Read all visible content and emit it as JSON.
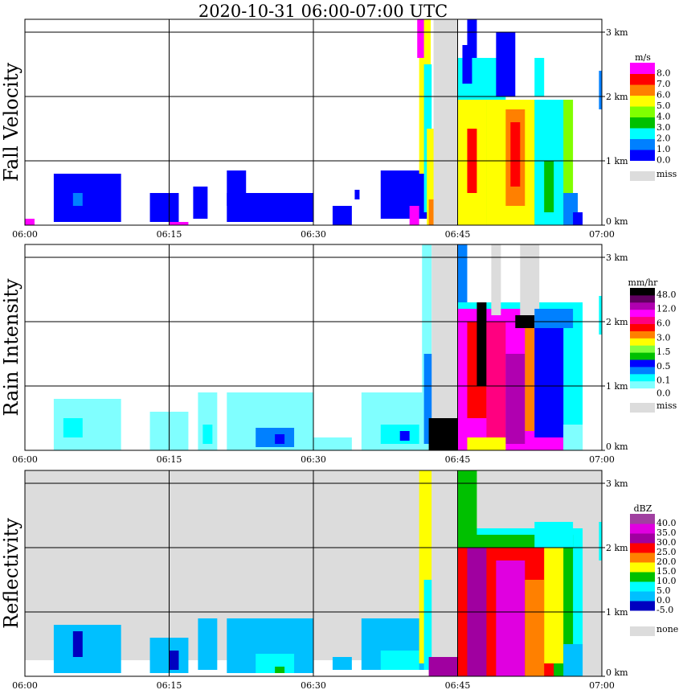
{
  "chart_data": {
    "type": "heatmap",
    "title": "2020-10-31   06:00-07:00 UTC",
    "x_range_minutes": [
      0,
      60
    ],
    "x_ticks": [
      "06:00",
      "06:15",
      "06:30",
      "06:45",
      "07:00"
    ],
    "y_range_km": [
      0,
      3.2
    ],
    "y_ticks": [
      "0 km",
      "1 km",
      "2 km",
      "3 km"
    ],
    "grid": true,
    "panels": [
      {
        "ylabel": "Fall Velocity",
        "background": "#ffffff",
        "legend": {
          "unit": "m/s",
          "colors": [
            "#0000ff",
            "#0080ff",
            "#00ffff",
            "#00c000",
            "#80ff00",
            "#ffff00",
            "#ff8000",
            "#ff0000",
            "#ff00ff"
          ],
          "labels": [
            {
              "level": 0,
              "text": "0.0"
            },
            {
              "level": 1,
              "text": "1.0"
            },
            {
              "level": 2,
              "text": "2.0"
            },
            {
              "level": 3,
              "text": "3.0"
            },
            {
              "level": 4,
              "text": "4.0"
            },
            {
              "level": 5,
              "text": "5.0"
            },
            {
              "level": 6,
              "text": "6.0"
            },
            {
              "level": 7,
              "text": "7.0"
            },
            {
              "level": 8,
              "text": "8.0"
            }
          ],
          "missing_label": "miss",
          "missing_color": "#dcdcdc"
        },
        "cells": [
          [
            0,
            1,
            0,
            0.1,
            8
          ],
          [
            3,
            10,
            0.05,
            0.8,
            0
          ],
          [
            5,
            6,
            0.3,
            0.5,
            1
          ],
          [
            13,
            16,
            0.05,
            0.5,
            0
          ],
          [
            17.5,
            19,
            0.1,
            0.6,
            0
          ],
          [
            15,
            17,
            0,
            0.05,
            8
          ],
          [
            21,
            30,
            0.05,
            0.5,
            0
          ],
          [
            21,
            23,
            0.3,
            0.85,
            0
          ],
          [
            26,
            29,
            0.1,
            0.4,
            0
          ],
          [
            32,
            34,
            0,
            0.3,
            0
          ],
          [
            34.3,
            34.8,
            0.4,
            0.55,
            0
          ],
          [
            37,
            42,
            0.1,
            0.85,
            0
          ],
          [
            40,
            41,
            0,
            0.3,
            8
          ],
          [
            41,
            42.2,
            0.8,
            3.2,
            5
          ],
          [
            40.8,
            41.5,
            2.6,
            3.2,
            8
          ],
          [
            41.5,
            42.3,
            0.2,
            2.5,
            2
          ],
          [
            41.8,
            42.6,
            0,
            1.5,
            5
          ],
          [
            42,
            42.5,
            0,
            0.4,
            6
          ],
          [
            42.5,
            45,
            0,
            3.2,
            "miss"
          ],
          [
            45,
            57,
            0,
            1.95,
            4
          ],
          [
            45,
            48,
            0,
            1.95,
            5
          ],
          [
            46,
            47,
            0.5,
            1.5,
            7
          ],
          [
            48,
            53,
            0,
            1.95,
            5
          ],
          [
            50,
            52,
            0.3,
            1.8,
            6
          ],
          [
            50.5,
            51.5,
            0.6,
            1.6,
            7
          ],
          [
            53,
            56,
            0,
            1.95,
            2
          ],
          [
            54,
            55,
            0.2,
            1,
            3
          ],
          [
            56,
            57.5,
            0,
            0.5,
            1
          ],
          [
            57,
            58,
            0,
            0.2,
            0
          ],
          [
            45,
            50,
            1.95,
            2.6,
            2
          ],
          [
            46,
            47,
            2.6,
            3.2,
            0
          ],
          [
            49,
            51,
            2,
            3,
            0
          ],
          [
            53,
            54,
            2,
            2.6,
            2
          ],
          [
            59.7,
            60,
            1.8,
            2.4,
            1
          ],
          [
            45.5,
            46.5,
            2.2,
            2.8,
            0
          ]
        ]
      },
      {
        "ylabel": "Rain Intensity",
        "background": "#ffffff",
        "legend": {
          "unit": "mm/hr",
          "colors": [
            "#80ffff",
            "#00ffff",
            "#0080ff",
            "#0000ff",
            "#00c000",
            "#80ff40",
            "#ffff00",
            "#ff8000",
            "#ff0000",
            "#ff0080",
            "#ff00ff",
            "#b000b0",
            "#600060",
            "#000000"
          ],
          "labels": [
            {
              "level": 0,
              "text": "0.0"
            },
            {
              "level": 1,
              "text": "0.1"
            },
            {
              "level": 3,
              "text": "0.5"
            },
            {
              "level": 5,
              "text": "1.5"
            },
            {
              "level": 7,
              "text": "3.0"
            },
            {
              "level": 9,
              "text": "6.0"
            },
            {
              "level": 11,
              "text": "12.0"
            },
            {
              "level": 13,
              "text": "48.0"
            }
          ],
          "missing_label": "miss",
          "missing_color": "#dcdcdc"
        },
        "cells": [
          [
            3,
            10,
            0,
            0.8,
            0
          ],
          [
            4,
            6,
            0.2,
            0.5,
            1
          ],
          [
            13,
            17,
            0,
            0.6,
            0
          ],
          [
            18,
            20,
            0,
            0.9,
            0
          ],
          [
            18.5,
            19.5,
            0.1,
            0.4,
            1
          ],
          [
            21,
            30,
            0,
            0.9,
            0
          ],
          [
            24,
            28,
            0.05,
            0.35,
            2
          ],
          [
            26,
            27,
            0.1,
            0.25,
            3
          ],
          [
            30,
            34,
            0,
            0.2,
            0
          ],
          [
            35,
            42,
            0,
            0.9,
            0
          ],
          [
            37,
            41,
            0.1,
            0.4,
            1
          ],
          [
            39,
            40,
            0.15,
            0.3,
            3
          ],
          [
            41.3,
            42.3,
            0.3,
            3.2,
            0
          ],
          [
            41.5,
            42.5,
            0.1,
            1.5,
            2
          ],
          [
            42,
            45,
            0,
            0.5,
            13
          ],
          [
            42.3,
            45,
            0.5,
            3.2,
            "miss"
          ],
          [
            45,
            58,
            0,
            2.3,
            1
          ],
          [
            45,
            56,
            0,
            2.2,
            10
          ],
          [
            46,
            48,
            0.5,
            2,
            8
          ],
          [
            47,
            48,
            1,
            2.3,
            13
          ],
          [
            48,
            50,
            0.2,
            2,
            9
          ],
          [
            50,
            52,
            0.1,
            1.5,
            11
          ],
          [
            52,
            53,
            0.3,
            2,
            7
          ],
          [
            53,
            56,
            0.2,
            2,
            3
          ],
          [
            56,
            58,
            0,
            0.4,
            0
          ],
          [
            46,
            50,
            0,
            0.2,
            6
          ],
          [
            48.5,
            49.5,
            2.1,
            3.2,
            "miss"
          ],
          [
            51.5,
            53.5,
            1.9,
            3.2,
            "miss"
          ],
          [
            51,
            53,
            1.9,
            2.1,
            13
          ],
          [
            45,
            46,
            2.3,
            3.2,
            2
          ],
          [
            53,
            57,
            1.9,
            2.2,
            2
          ],
          [
            59.7,
            60,
            1.8,
            2.4,
            1
          ]
        ]
      },
      {
        "ylabel": "Reflectivity",
        "background": "#dcdcdc",
        "legend": {
          "unit": "dBZ",
          "colors": [
            "#0000c0",
            "#00c0ff",
            "#00ffff",
            "#00c000",
            "#ffff00",
            "#ff8000",
            "#ff0000",
            "#a000a0",
            "#e000e0",
            "#a040a0"
          ],
          "labels": [
            {
              "level": 0,
              "text": "-5.0"
            },
            {
              "level": 1,
              "text": "0.0"
            },
            {
              "level": 2,
              "text": "5.0"
            },
            {
              "level": 3,
              "text": "10.0"
            },
            {
              "level": 4,
              "text": "15.0"
            },
            {
              "level": 5,
              "text": "20.0"
            },
            {
              "level": 6,
              "text": "25.0"
            },
            {
              "level": 7,
              "text": "30.0"
            },
            {
              "level": 8,
              "text": "35.0"
            },
            {
              "level": 9,
              "text": "40.0"
            }
          ],
          "missing_label": "none",
          "missing_color": "#dcdcdc"
        },
        "cells": [
          [
            0,
            42,
            0,
            0.25,
            "clear"
          ],
          [
            3,
            10,
            0.05,
            0.8,
            1
          ],
          [
            5,
            6,
            0.3,
            0.7,
            0
          ],
          [
            13,
            17,
            0.05,
            0.6,
            1
          ],
          [
            15,
            16,
            0.1,
            0.4,
            0
          ],
          [
            18,
            20,
            0.1,
            0.9,
            1
          ],
          [
            21,
            30,
            0.05,
            0.9,
            1
          ],
          [
            24,
            28,
            0.05,
            0.35,
            2
          ],
          [
            26,
            27,
            0.05,
            0.15,
            3
          ],
          [
            32,
            34,
            0.1,
            0.3,
            1
          ],
          [
            35,
            42,
            0.1,
            0.9,
            1
          ],
          [
            37,
            41,
            0.1,
            0.4,
            2
          ],
          [
            41,
            42.3,
            0.2,
            3.2,
            4
          ],
          [
            41.5,
            42.5,
            0.1,
            1.5,
            2
          ],
          [
            42.3,
            45,
            0,
            3.2,
            "miss"
          ],
          [
            42,
            45,
            0,
            0.3,
            7
          ],
          [
            45,
            58,
            0,
            2.3,
            2
          ],
          [
            45,
            57,
            0,
            2.2,
            3
          ],
          [
            45,
            55,
            0,
            2.0,
            6
          ],
          [
            46,
            48,
            0,
            2,
            7
          ],
          [
            49,
            52,
            0,
            1.8,
            8
          ],
          [
            52,
            54,
            0,
            1.5,
            5
          ],
          [
            54,
            56,
            0.2,
            2,
            4
          ],
          [
            56,
            58,
            0,
            0.5,
            1
          ],
          [
            45,
            47,
            2.2,
            3.2,
            3
          ],
          [
            53,
            57,
            2,
            2.4,
            2
          ],
          [
            59.7,
            60,
            1.8,
            2.4,
            2
          ]
        ]
      }
    ]
  }
}
